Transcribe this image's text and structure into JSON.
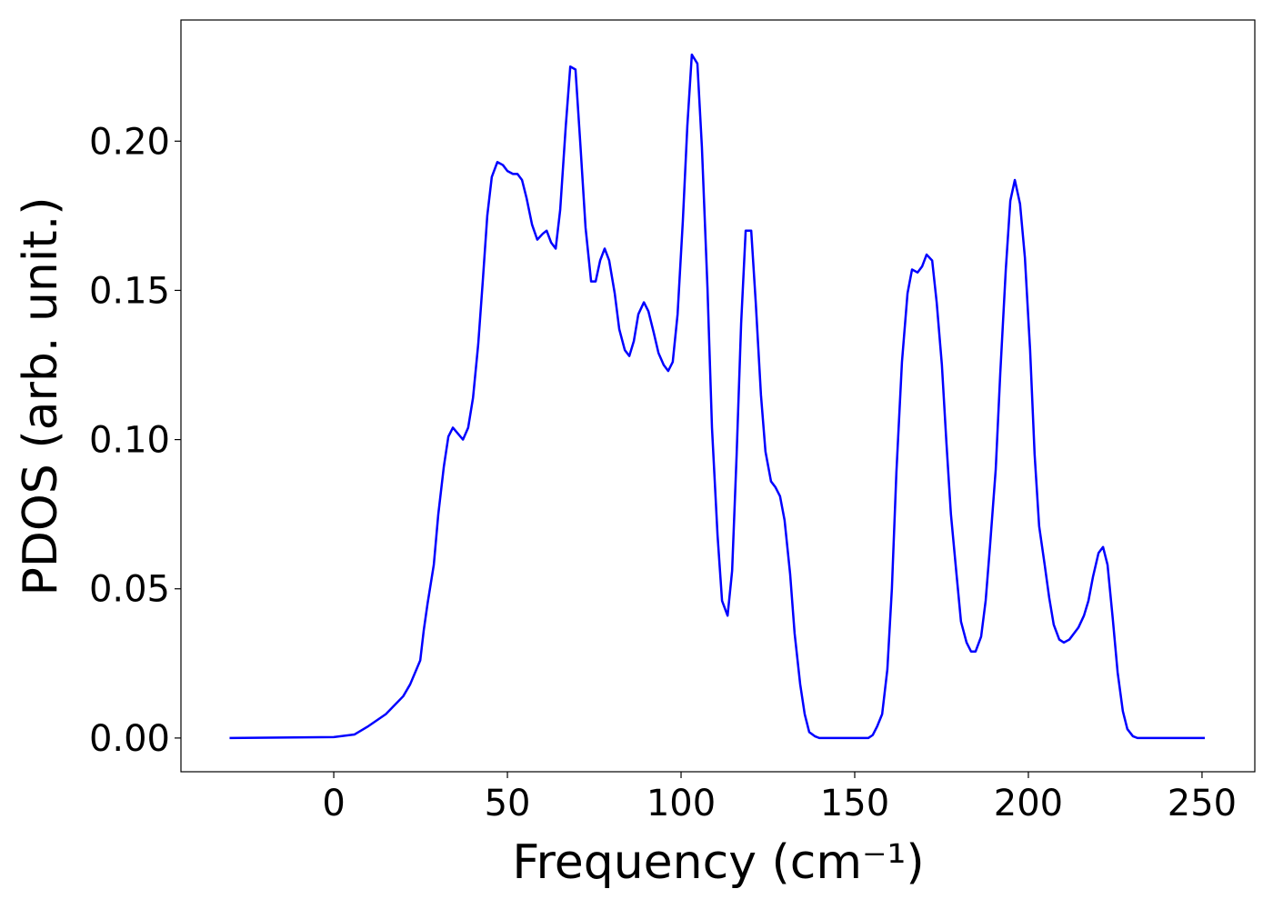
{
  "chart_data": {
    "type": "line",
    "xlabel": "Frequency (cm⁻¹)",
    "ylabel": "PDOS (arb. unit.)",
    "color": "#0000ff",
    "xlim": [
      -44,
      265.2
    ],
    "ylim": [
      -0.0113,
      0.2406
    ],
    "xticks": [
      0,
      50,
      100,
      150,
      200,
      250
    ],
    "yticks": [
      {
        "value": 0,
        "label": "0.00"
      },
      0.05,
      {
        "value": 0.1,
        "label": "0.10"
      },
      0.15,
      {
        "value": 0.2,
        "label": "0.20"
      }
    ],
    "grid": false,
    "x": [
      -30,
      0,
      6,
      10,
      15,
      20,
      22,
      24.9,
      25.9,
      27.0,
      28.8,
      30.1,
      31.7,
      33.0,
      34.3,
      37.2,
      38.7,
      40.1,
      41.6,
      42.9,
      44.2,
      45.5,
      47.1,
      48.7,
      50,
      51.6,
      52.9,
      54.2,
      55.5,
      57.1,
      58.6,
      60.2,
      61.3,
      62.6,
      63.9,
      65.2,
      66.8,
      68.1,
      69.6,
      71.0,
      72.5,
      74.1,
      75.4,
      76.7,
      78.0,
      79.3,
      80.9,
      82.2,
      83.8,
      85.1,
      86.4,
      87.7,
      89.3,
      90.6,
      92.1,
      93.5,
      95.0,
      96.3,
      97.6,
      99.0,
      100.5,
      101.8,
      103.1,
      104.7,
      106.0,
      107.6,
      108.9,
      110.5,
      111.8,
      113.4,
      114.7,
      116.0,
      117.3,
      118.6,
      120.2,
      121.5,
      123.0,
      124.3,
      125.9,
      127.2,
      128.5,
      129.8,
      131.4,
      132.7,
      134.3,
      135.6,
      136.9,
      138.5,
      139.8,
      153.9,
      155.2,
      156.5,
      157.9,
      159.4,
      160.7,
      162.0,
      163.6,
      165.2,
      166.5,
      168.1,
      169.4,
      170.7,
      172.3,
      173.6,
      175.1,
      176.4,
      177.7,
      179.3,
      180.6,
      182.2,
      183.5,
      184.8,
      186.4,
      187.7,
      189.0,
      190.6,
      191.9,
      193.5,
      194.8,
      196.1,
      197.6,
      199.0,
      200.5,
      201.8,
      203.1,
      204.7,
      206.0,
      207.3,
      208.9,
      210.2,
      211.8,
      213.1,
      214.4,
      216.0,
      217.3,
      218.6,
      220.2,
      221.5,
      222.8,
      224.3,
      225.7,
      227.2,
      228.5,
      230.1,
      231.4,
      250.8
    ],
    "values": [
      0,
      0.0003,
      0.0012,
      0.004,
      0.008,
      0.014,
      0.018,
      0.026,
      0.036,
      0.045,
      0.058,
      0.075,
      0.091,
      0.101,
      0.104,
      0.1,
      0.104,
      0.114,
      0.132,
      0.153,
      0.175,
      0.188,
      0.193,
      0.192,
      0.19,
      0.189,
      0.189,
      0.187,
      0.181,
      0.172,
      0.167,
      0.169,
      0.17,
      0.166,
      0.164,
      0.177,
      0.205,
      0.225,
      0.224,
      0.199,
      0.171,
      0.153,
      0.153,
      0.16,
      0.164,
      0.16,
      0.149,
      0.137,
      0.13,
      0.128,
      0.133,
      0.142,
      0.146,
      0.143,
      0.136,
      0.129,
      0.125,
      0.123,
      0.126,
      0.142,
      0.173,
      0.205,
      0.229,
      0.226,
      0.198,
      0.151,
      0.104,
      0.068,
      0.046,
      0.041,
      0.056,
      0.095,
      0.139,
      0.17,
      0.17,
      0.146,
      0.115,
      0.096,
      0.086,
      0.084,
      0.081,
      0.073,
      0.055,
      0.035,
      0.018,
      0.008,
      0.002,
      0.0006,
      0,
      0,
      0.001,
      0.004,
      0.008,
      0.023,
      0.05,
      0.089,
      0.126,
      0.149,
      0.157,
      0.156,
      0.158,
      0.162,
      0.16,
      0.146,
      0.125,
      0.099,
      0.075,
      0.055,
      0.039,
      0.032,
      0.029,
      0.029,
      0.034,
      0.046,
      0.065,
      0.09,
      0.122,
      0.157,
      0.18,
      0.187,
      0.179,
      0.161,
      0.13,
      0.095,
      0.071,
      0.058,
      0.047,
      0.038,
      0.033,
      0.032,
      0.033,
      0.035,
      0.037,
      0.041,
      0.046,
      0.054,
      0.062,
      0.064,
      0.058,
      0.04,
      0.022,
      0.009,
      0.003,
      0.0006,
      0,
      0
    ]
  }
}
